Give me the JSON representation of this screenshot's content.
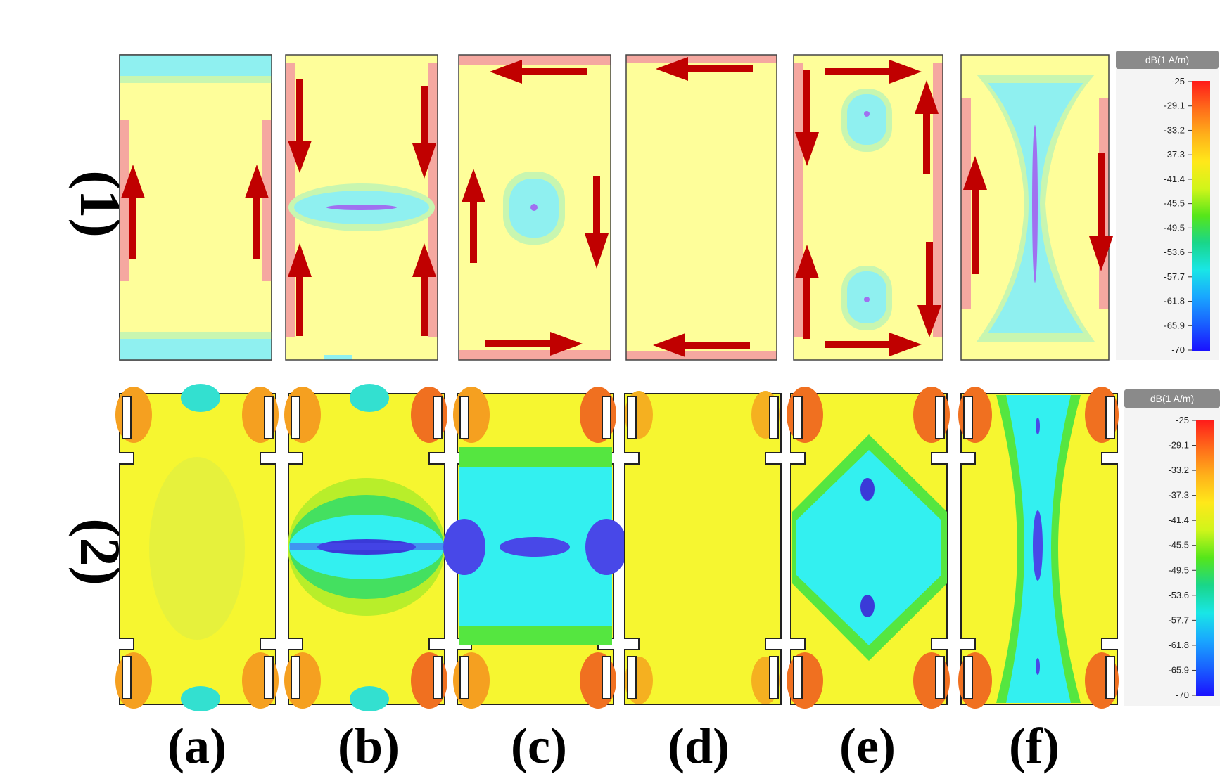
{
  "row_labels": [
    "(1)",
    "(2)"
  ],
  "column_labels": [
    "(a)",
    "(b)",
    "(c)",
    "(d)",
    "(e)",
    "(f)"
  ],
  "colorbar": {
    "title": "dB(1 A/m)",
    "title_row2": "dB(1 A/m)",
    "ticks": [
      "-25",
      "-29.1",
      "-33.2",
      "-37.3",
      "-41.4",
      "-45.5",
      "-49.5",
      "-53.6",
      "-57.7",
      "-61.8",
      "-65.9",
      "-70"
    ],
    "colors_top_to_bottom": [
      "#ff1a1a",
      "#ff5a1a",
      "#ff9a1a",
      "#ffd21a",
      "#f5f51a",
      "#b8f01a",
      "#55e61a",
      "#19d67a",
      "#19e6e6",
      "#19a6ff",
      "#1960ff",
      "#1a10ff"
    ]
  },
  "colors": {
    "arrow": "#c00000",
    "field_low_row1": "#fefe9a",
    "field_low_row2": "#f7f733",
    "cyan": "#33f0f0",
    "blue": "#4a4af0",
    "red": "#f07070",
    "green": "#55e659"
  }
}
